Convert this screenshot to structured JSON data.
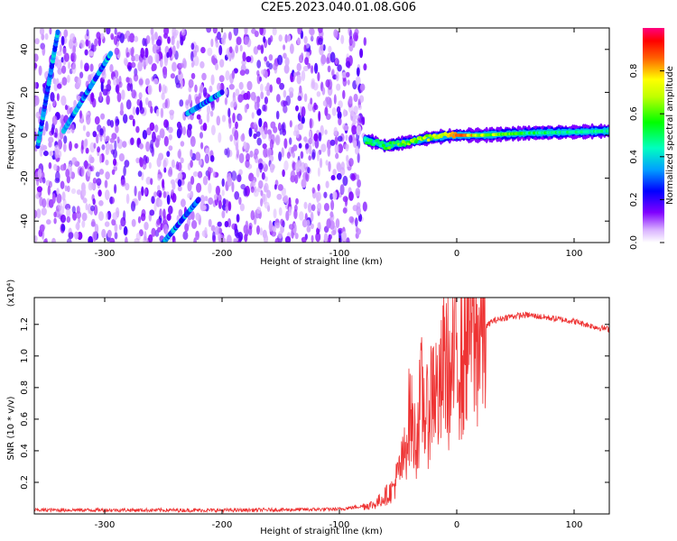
{
  "page_title": "C2E5.2023.040.01.08.G06",
  "chart_data": [
    {
      "type": "heatmap",
      "title": "C2E5.2023.040.01.08.G06",
      "xlabel": "Height of straight line (km)",
      "ylabel": "Frequency (Hz)",
      "xlim": [
        -360,
        130
      ],
      "ylim": [
        -50,
        50
      ],
      "xticks": [
        "-300",
        "-200",
        "-100",
        "0",
        "100"
      ],
      "yticks": [
        "40",
        "20",
        "0",
        "-20",
        "-40"
      ],
      "colorbar": {
        "label": "Normalized spectral amplitude",
        "range": [
          0,
          1
        ],
        "ticks": [
          "0.0",
          "0.2",
          "0.4",
          "0.6",
          "0.8"
        ],
        "colors": [
          "#ffffff",
          "#c080ff",
          "#6000e0",
          "#0000ff",
          "#00c0ff",
          "#00ff80",
          "#80ff00",
          "#ffff00",
          "#ff8000",
          "#ff0000",
          "#ff0080"
        ]
      },
      "noise_region_x": [
        -360,
        -78
      ],
      "diagonal_features": [
        {
          "x": [
            -357,
            -340
          ],
          "y": [
            -5,
            48
          ]
        },
        {
          "x": [
            -335,
            -295
          ],
          "y": [
            2,
            38
          ]
        },
        {
          "x": [
            -250,
            -220
          ],
          "y": [
            -50,
            -30
          ]
        },
        {
          "x": [
            -230,
            -200
          ],
          "y": [
            10,
            20
          ]
        }
      ],
      "main_signal": [
        {
          "x": -78,
          "y": -2,
          "amp": 0.5
        },
        {
          "x": -60,
          "y": -5,
          "amp": 0.55
        },
        {
          "x": -40,
          "y": -3,
          "amp": 0.6
        },
        {
          "x": -20,
          "y": -1,
          "amp": 0.7
        },
        {
          "x": 0,
          "y": 0,
          "amp": 0.85
        },
        {
          "x": 20,
          "y": 0,
          "amp": 0.7
        },
        {
          "x": 60,
          "y": 1,
          "amp": 0.5
        },
        {
          "x": 100,
          "y": 1.5,
          "amp": 0.45
        },
        {
          "x": 130,
          "y": 2,
          "amp": 0.45
        }
      ]
    },
    {
      "type": "line",
      "xlabel": "Height of straight line (km)",
      "ylabel": "SNR (10 * v/v)",
      "y_multiplier": "(x10⁴)",
      "xlim": [
        -360,
        130
      ],
      "ylim": [
        0,
        1.37
      ],
      "xticks": [
        "-300",
        "-200",
        "-100",
        "0",
        "100"
      ],
      "yticks": [
        "0.2",
        "0.4",
        "0.6",
        "0.8",
        "1.0",
        "1.2"
      ],
      "color": "#ee3333",
      "series": [
        {
          "x": [
            -360,
            -300,
            -200,
            -100,
            -70,
            -55,
            -45,
            -40,
            -35,
            -30,
            -25,
            -20,
            -15,
            -10,
            -5,
            0,
            5,
            10,
            15,
            20,
            30,
            45,
            60,
            80,
            100,
            120,
            130
          ],
          "y": [
            0.025,
            0.025,
            0.023,
            0.03,
            0.06,
            0.15,
            0.35,
            0.65,
            0.45,
            0.75,
            0.6,
            0.85,
            0.7,
            1.0,
            0.8,
            1.1,
            0.9,
            1.3,
            1.05,
            1.15,
            1.22,
            1.25,
            1.26,
            1.24,
            1.22,
            1.18,
            1.17
          ]
        }
      ]
    }
  ]
}
